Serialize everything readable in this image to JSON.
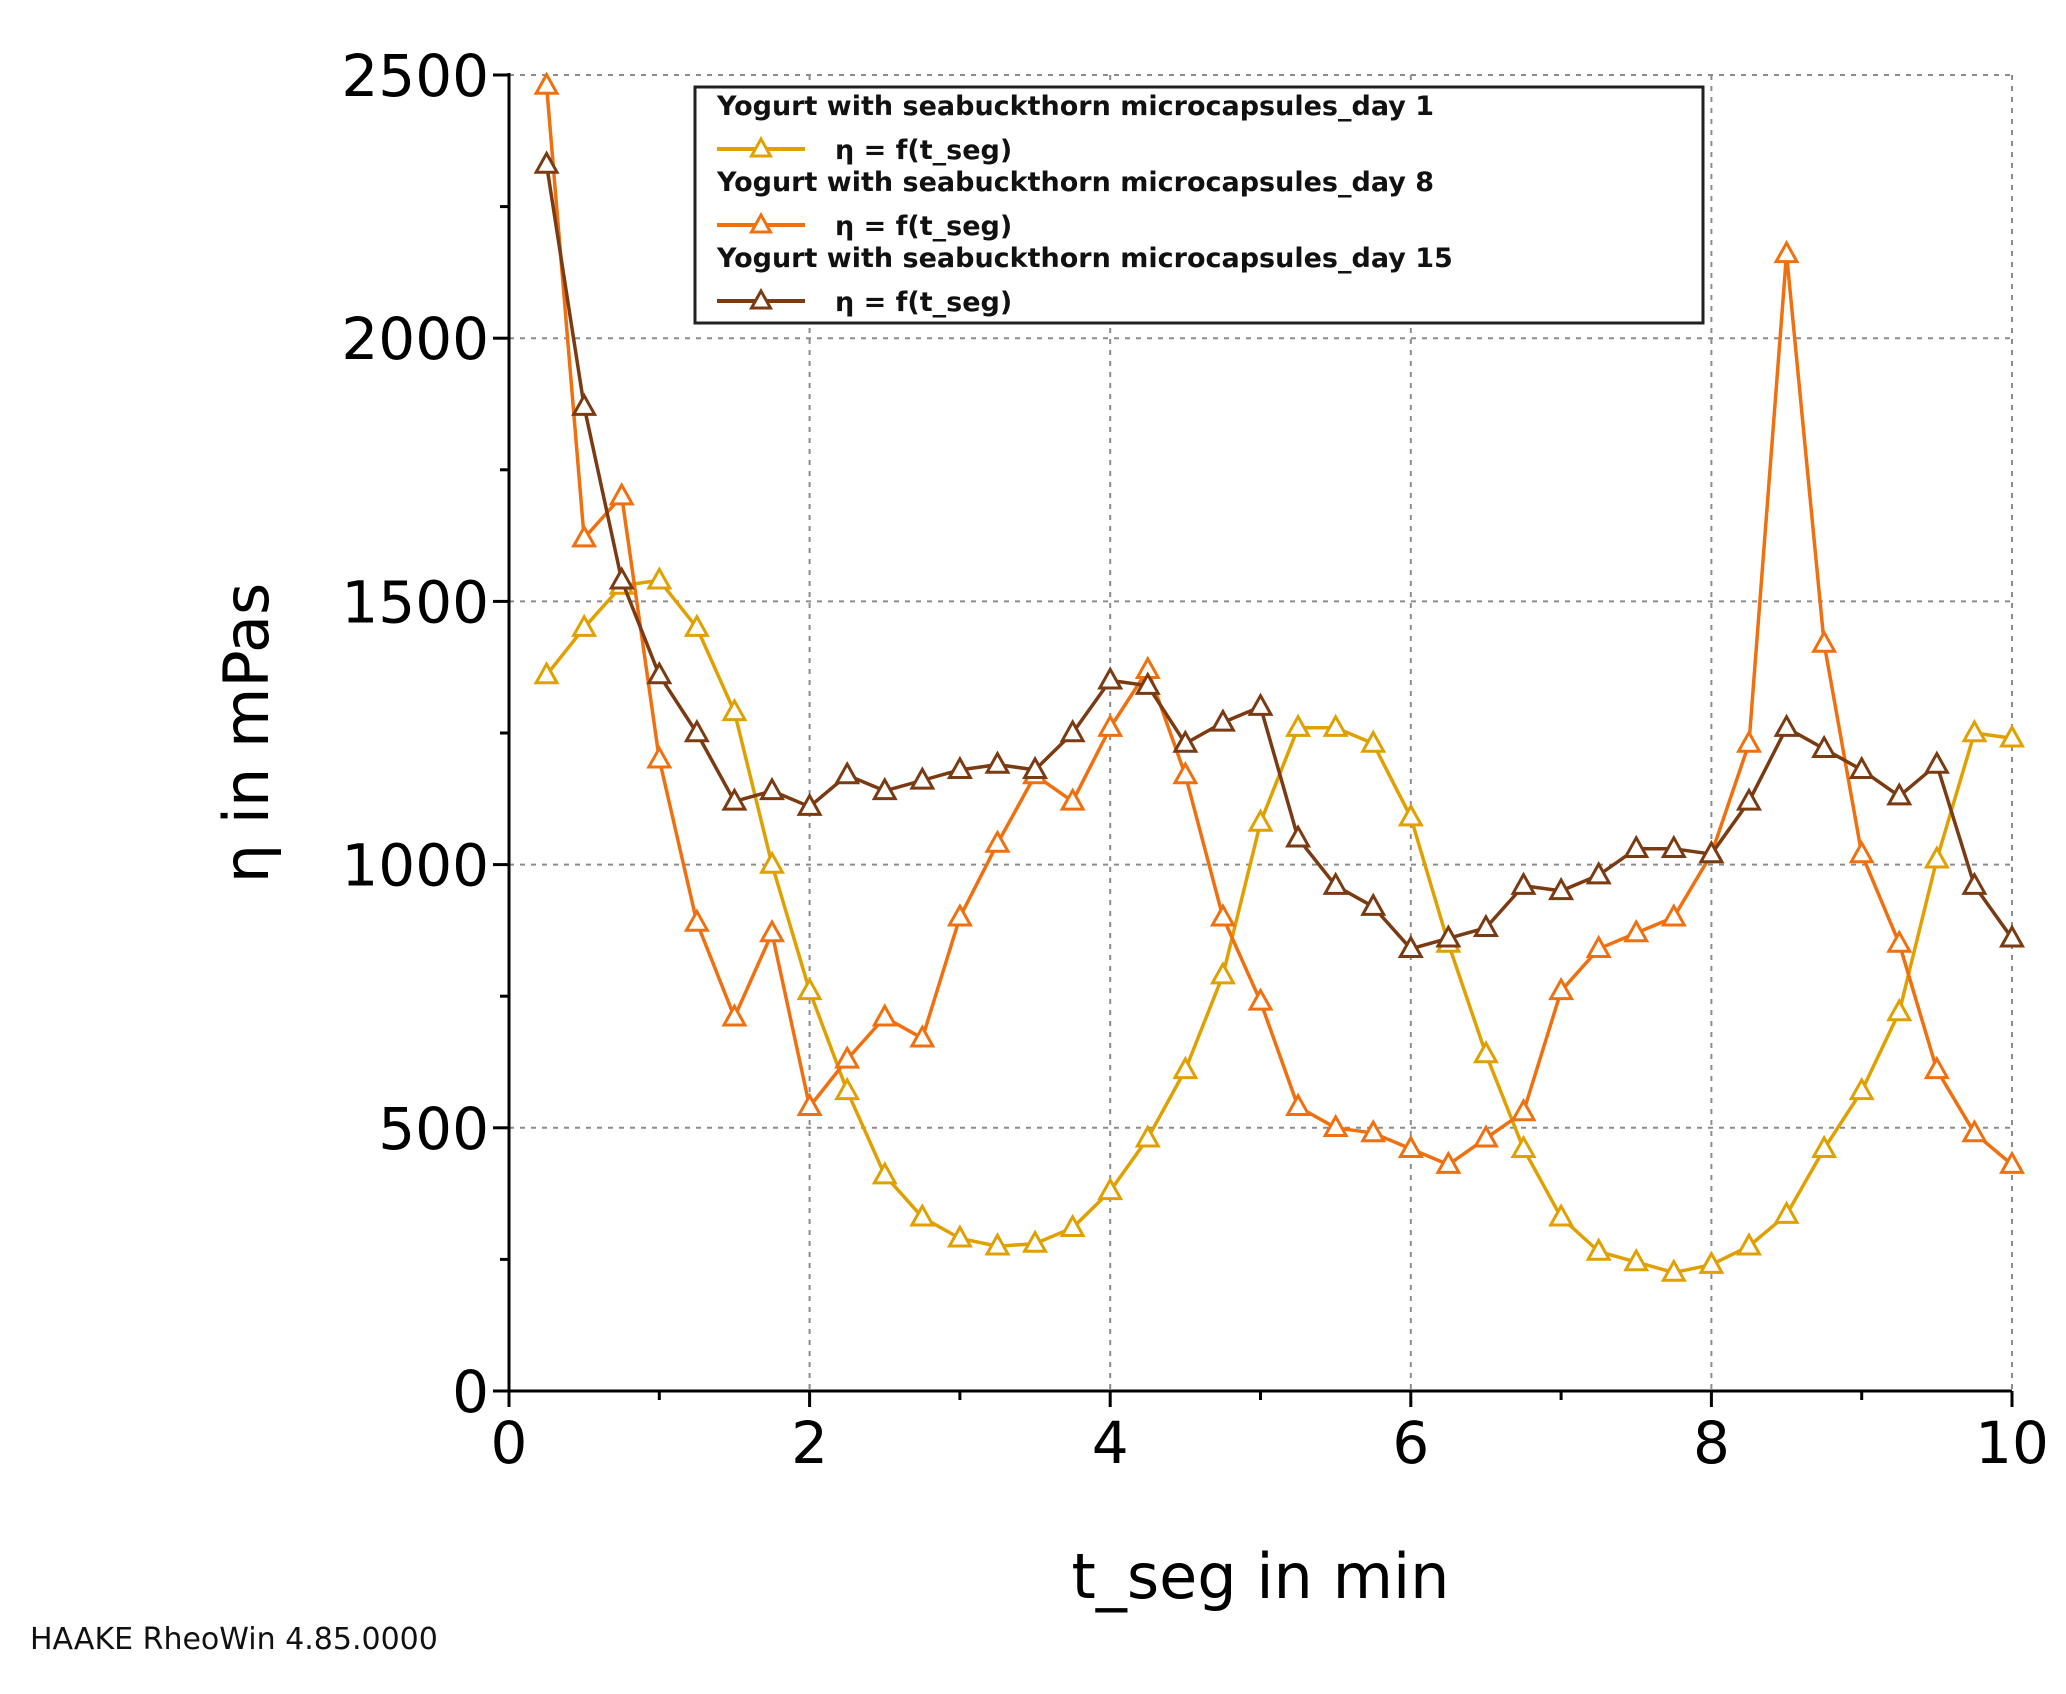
{
  "footer": "HAAKE RheoWin 4.85.0000",
  "chart_data": {
    "type": "line",
    "title": "",
    "xlabel": "t_seg in min",
    "ylabel": "η in mPas",
    "xlim": [
      0,
      10
    ],
    "ylim": [
      0,
      2500
    ],
    "xticks": [
      0,
      2,
      4,
      6,
      8,
      10
    ],
    "yticks": [
      0,
      500,
      1000,
      1500,
      2000,
      2500
    ],
    "grid": true,
    "legend_position": "top-center",
    "marker": "triangle-open",
    "x": [
      0.25,
      0.5,
      0.75,
      1.0,
      1.25,
      1.5,
      1.75,
      2.0,
      2.25,
      2.5,
      2.75,
      3.0,
      3.25,
      3.5,
      3.75,
      4.0,
      4.25,
      4.5,
      4.75,
      5.0,
      5.25,
      5.5,
      5.75,
      6.0,
      6.25,
      6.5,
      6.75,
      7.0,
      7.25,
      7.5,
      7.75,
      8.0,
      8.25,
      8.5,
      8.75,
      9.0,
      9.25,
      9.5,
      9.75,
      10.0
    ],
    "series": [
      {
        "name": "Yogurt with seabuckthorn microcapsules_day 1",
        "label": "η = f(t_seg)",
        "color": "#e0a000",
        "values": [
          1360,
          1450,
          1530,
          1540,
          1450,
          1290,
          1000,
          760,
          570,
          410,
          330,
          290,
          275,
          280,
          310,
          380,
          480,
          610,
          790,
          1080,
          1260,
          1260,
          1230,
          1090,
          850,
          640,
          460,
          330,
          265,
          245,
          225,
          240,
          275,
          335,
          460,
          570,
          720,
          1010,
          1250,
          1240
        ]
      },
      {
        "name": "Yogurt with seabuckthorn microcapsules_day 8",
        "label": "η = f(t_seg)",
        "color": "#f07010",
        "values": [
          2480,
          1620,
          1700,
          1200,
          890,
          710,
          870,
          540,
          630,
          710,
          670,
          900,
          1040,
          1170,
          1120,
          1260,
          1370,
          1170,
          900,
          740,
          540,
          500,
          490,
          460,
          430,
          480,
          530,
          760,
          840,
          870,
          900,
          1020,
          1230,
          2160,
          1420,
          1020,
          850,
          610,
          490,
          430
        ]
      },
      {
        "name": "Yogurt with seabuckthorn microcapsules_day 15",
        "label": "η = f(t_seg)",
        "color": "#7a3a12",
        "values": [
          2330,
          1870,
          1540,
          1360,
          1250,
          1120,
          1140,
          1110,
          1170,
          1140,
          1160,
          1180,
          1190,
          1180,
          1250,
          1350,
          1340,
          1230,
          1270,
          1300,
          1050,
          960,
          920,
          840,
          860,
          880,
          960,
          950,
          980,
          1030,
          1030,
          1020,
          1120,
          1260,
          1220,
          1180,
          1130,
          1190,
          960,
          860
        ]
      }
    ]
  }
}
